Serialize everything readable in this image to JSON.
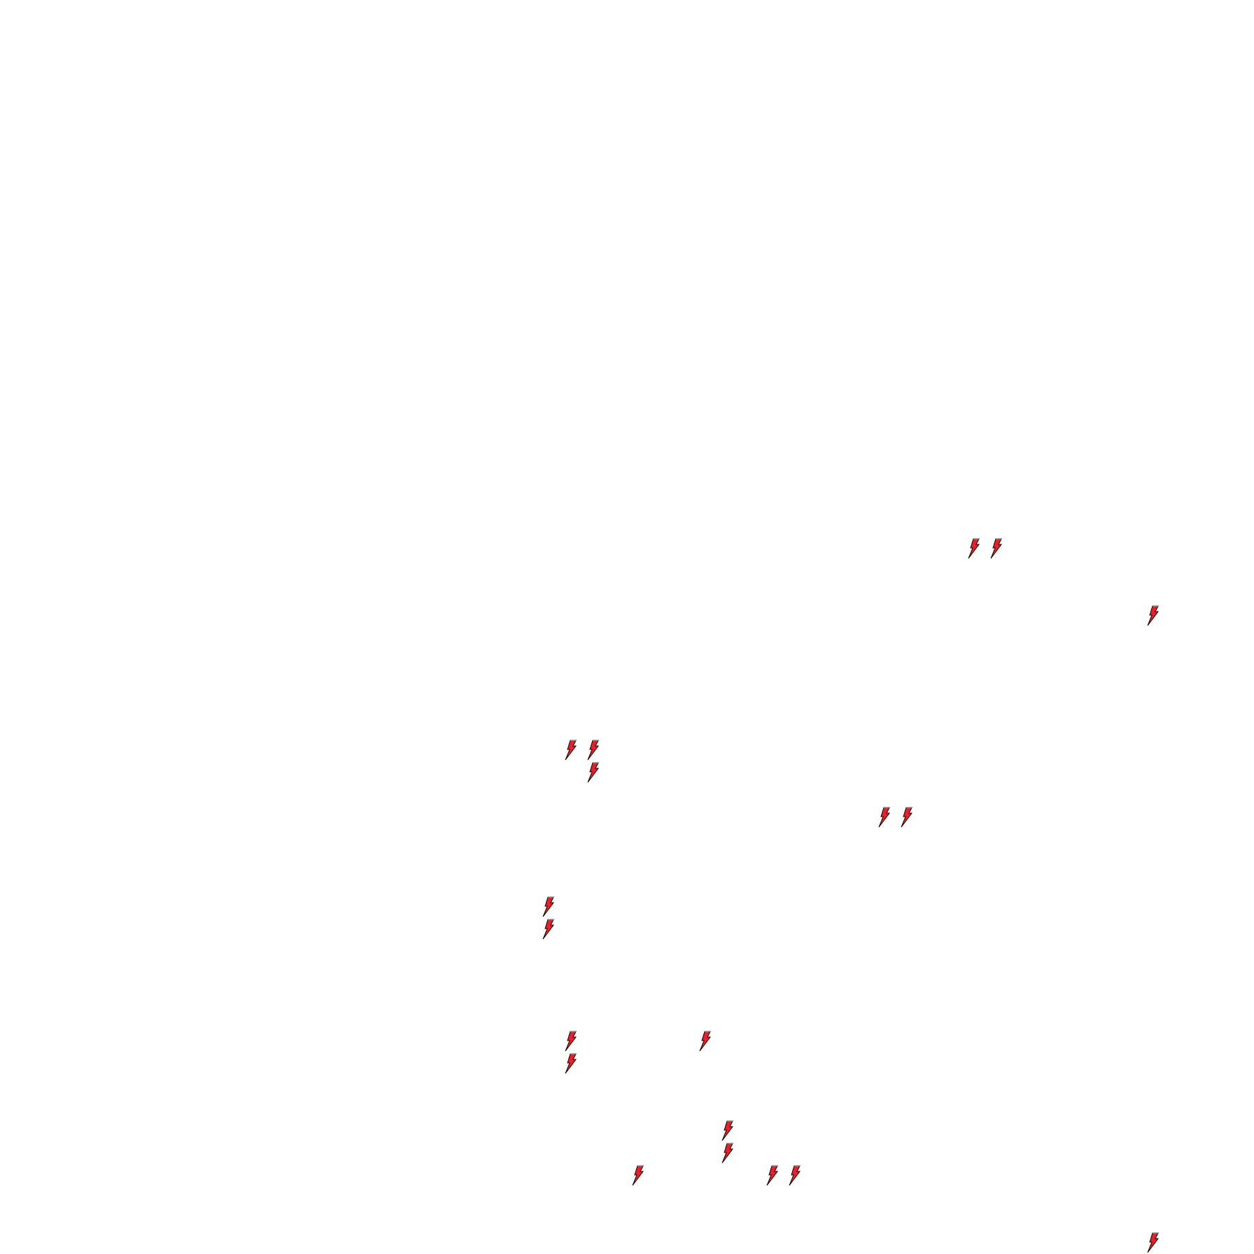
{
  "canvas": {
    "background": "#ffffff",
    "icon": {
      "name": "lightning-bolt-icon",
      "fill": "#e8202a",
      "outline": "#000000",
      "count": 19
    }
  }
}
